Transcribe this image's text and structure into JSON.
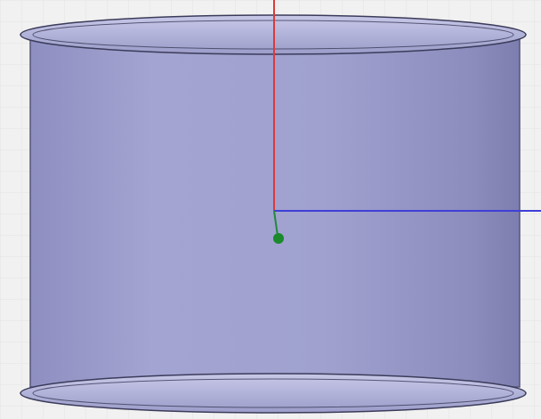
{
  "viewport": {
    "background_color": "#f1f1f1",
    "grid_line_color": "#e5e5e5"
  },
  "model": {
    "shape": "cylinder",
    "body_color": "#9c9cc9",
    "body_shadow_color": "#7f80b0",
    "rim_color": "#b2b2d6",
    "outline_color": "#3b3b5a"
  },
  "axes": {
    "x_axis_color": "#3f3fd7",
    "y_axis_color": "#d93a3a",
    "z_axis_color": "#1f8a3a",
    "origin_marker_color": "#1a8a2b"
  }
}
